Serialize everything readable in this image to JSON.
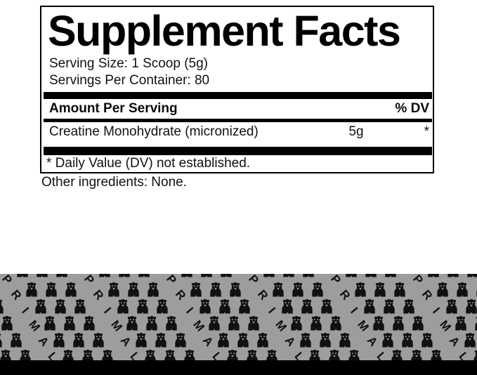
{
  "label": {
    "title": "Supplement Facts",
    "serving_size": "Serving Size: 1 Scoop (5g)",
    "servings_per_container": "Servings Per Container: 80",
    "amount_header": "Amount Per Serving",
    "dv_header": "% DV",
    "ingredient_rows": [
      {
        "name": "Creatine Monohydrate (micronized)",
        "amount": "5g",
        "daily_value": "*"
      }
    ],
    "footnote": "* Daily Value (DV) not established.",
    "other_ingredients": "Other ingredients: None."
  },
  "brand_band": {
    "word": "PRIMAL",
    "letters": [
      "P",
      "R",
      "I",
      "M",
      "A",
      "L"
    ],
    "pattern_icon": "gorilla-icon",
    "colors": {
      "band_background": "#9d9d9d",
      "pattern_ink": "#111111",
      "bottom_strip": "#000000"
    }
  }
}
